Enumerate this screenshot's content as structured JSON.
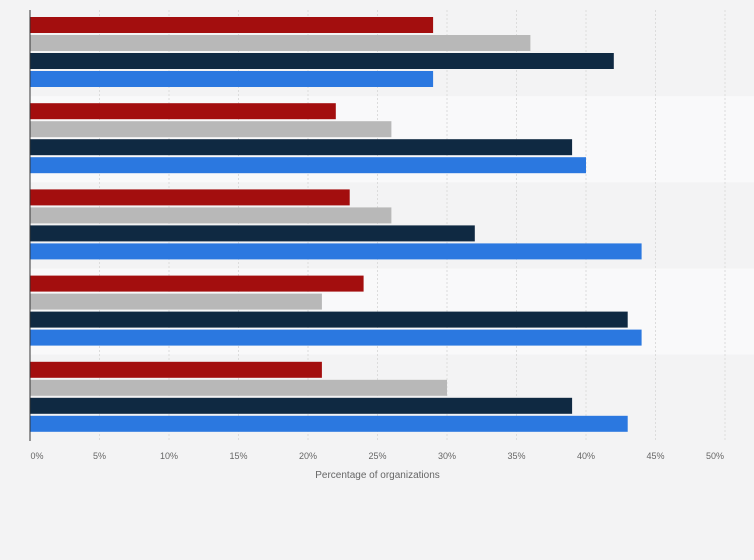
{
  "chart_data": {
    "type": "bar",
    "orientation": "horizontal",
    "categories": [
      "",
      "",
      "",
      "",
      ""
    ],
    "series": [
      {
        "values": [
          29,
          22,
          23,
          24,
          21
        ]
      },
      {
        "values": [
          36,
          26,
          26,
          21,
          30
        ]
      },
      {
        "values": [
          42,
          39,
          32,
          43,
          39
        ]
      },
      {
        "values": [
          29,
          40,
          44,
          44,
          43
        ]
      }
    ],
    "colors": [
      "#a30e0e",
      "#b8b8b8",
      "#0f2942",
      "#2b78e0"
    ],
    "xlim": [
      0,
      50
    ],
    "x_ticks": [
      "0%",
      "5%",
      "10%",
      "15%",
      "20%",
      "25%",
      "30%",
      "35%",
      "40%",
      "45%",
      "50%"
    ],
    "xlabel": "Percentage of organizations",
    "grid": true,
    "legend": "none"
  }
}
